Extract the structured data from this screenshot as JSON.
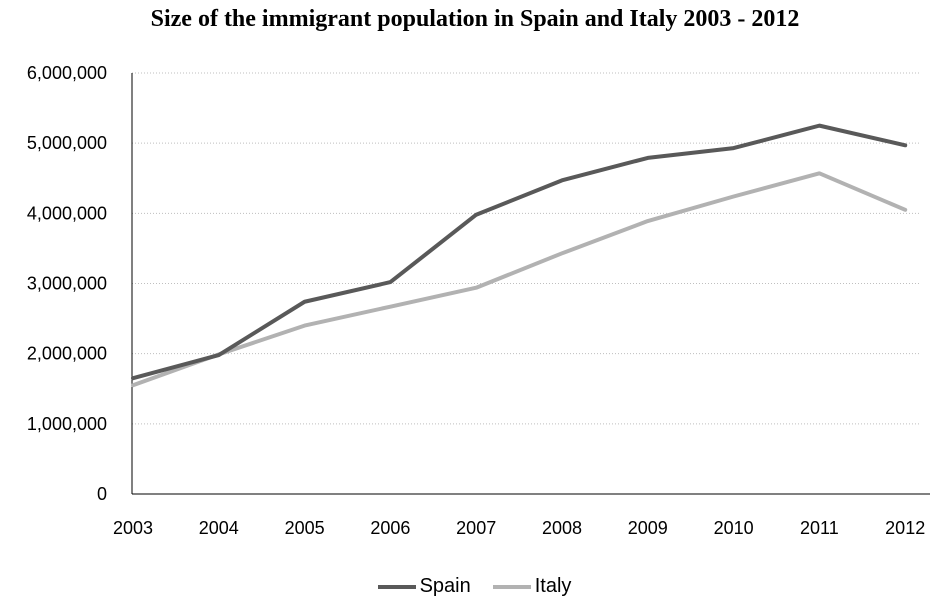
{
  "chart_data": {
    "type": "line",
    "title": "Size of the immigrant population in Spain and Italy 2003 - 2012",
    "xlabel": "",
    "ylabel": "",
    "categories": [
      "2003",
      "2004",
      "2005",
      "2006",
      "2007",
      "2008",
      "2009",
      "2010",
      "2011",
      "2012"
    ],
    "ylim": [
      0,
      6000000
    ],
    "yticks": [
      0,
      1000000,
      2000000,
      3000000,
      4000000,
      5000000,
      6000000
    ],
    "ytick_labels": [
      "0",
      "1,000,000",
      "2,000,000",
      "3,000,000",
      "4,000,000",
      "5,000,000",
      "6,000,000"
    ],
    "grid": true,
    "legend_position": "bottom",
    "series": [
      {
        "name": "Spain",
        "color": "#595959",
        "values": [
          1650000,
          1980000,
          2740000,
          3020000,
          3980000,
          4470000,
          4790000,
          4930000,
          5250000,
          4970000
        ]
      },
      {
        "name": "Italy",
        "color": "#b2b2b2",
        "values": [
          1550000,
          1990000,
          2400000,
          2670000,
          2940000,
          3430000,
          3890000,
          4240000,
          4570000,
          4050000
        ]
      }
    ]
  }
}
